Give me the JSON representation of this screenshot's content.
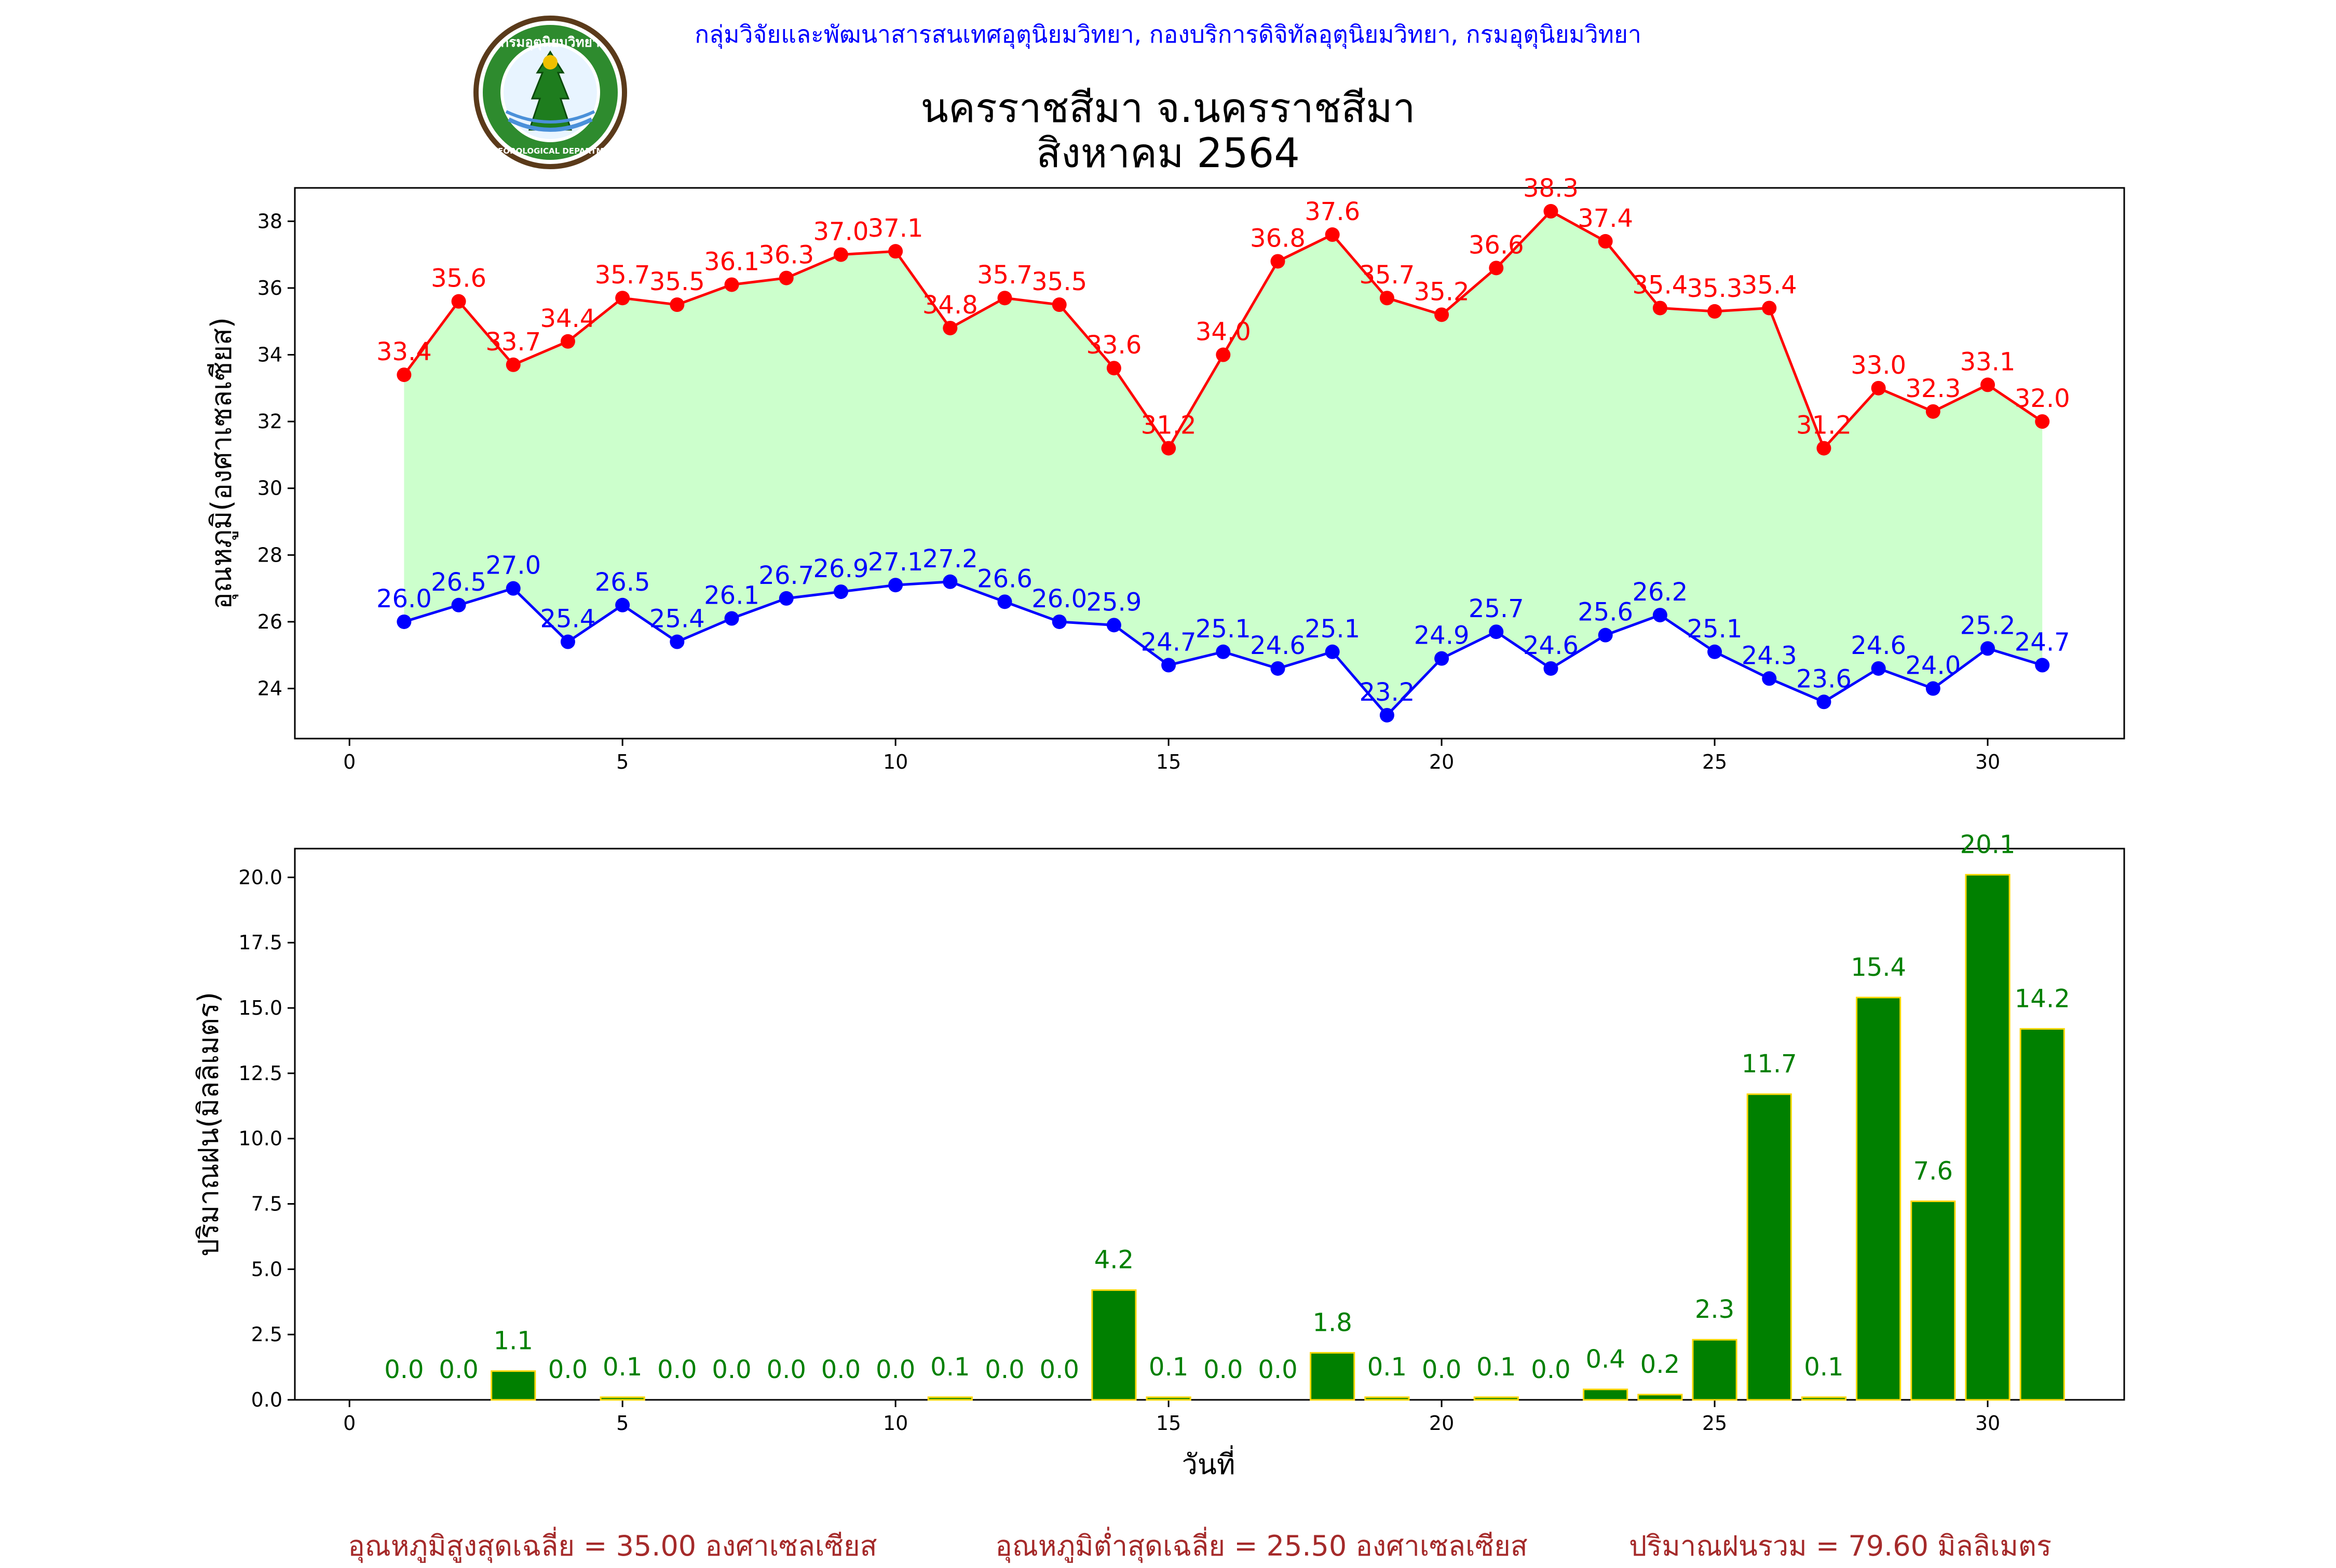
{
  "header": {
    "organization": "กลุ่มวิจัยและพัฒนาสารสนเทศอุตุนิยมวิทยา, กองบริการดิจิทัลอุตุนิยมวิทยา, กรมอุตุนิยมวิทยา",
    "logo_text": "กรมอุตุนิยมวิทยา",
    "logo_text_bottom": "METEOROLOGICAL DEPARTMENT",
    "title_line1": "นครราชสีมา จ.นครราชสีมา",
    "title_line2": "สิงหาคม 2564"
  },
  "colors": {
    "max_temp": "#ff0000",
    "min_temp": "#0000ff",
    "fill": "#ccffcc",
    "rain_bar": "#008000",
    "rain_edge": "#ffd700",
    "rain_label": "#008000",
    "footer_text": "#a52a2a",
    "header_text": "#0000ff"
  },
  "chart_data": [
    {
      "type": "line",
      "ylabel": "อุณหภูมิ(องศาเซลเซียส)",
      "xlim": [
        -1,
        32.5
      ],
      "ylim": [
        22.5,
        39
      ],
      "xticks": [
        0,
        5,
        10,
        15,
        20,
        25,
        30
      ],
      "yticks": [
        24,
        26,
        28,
        30,
        32,
        34,
        36,
        38
      ],
      "x": [
        1,
        2,
        3,
        4,
        5,
        6,
        7,
        8,
        9,
        10,
        11,
        12,
        13,
        14,
        15,
        16,
        17,
        18,
        19,
        20,
        21,
        22,
        23,
        24,
        25,
        26,
        27,
        28,
        29,
        30,
        31
      ],
      "series": [
        {
          "values": [
            33.4,
            35.6,
            33.7,
            34.4,
            35.7,
            35.5,
            36.1,
            36.3,
            37.0,
            37.1,
            34.8,
            35.7,
            35.5,
            33.6,
            31.2,
            34.0,
            36.8,
            37.6,
            35.7,
            35.2,
            36.6,
            38.3,
            37.4,
            35.4,
            35.3,
            35.4,
            31.2,
            33.0,
            32.3,
            33.1,
            32.0
          ]
        },
        {
          "values": [
            26.0,
            26.5,
            27.0,
            25.4,
            26.5,
            25.4,
            26.1,
            26.7,
            26.9,
            27.1,
            27.2,
            26.6,
            26.0,
            25.9,
            24.7,
            25.1,
            24.6,
            25.1,
            23.2,
            24.9,
            25.7,
            24.6,
            25.6,
            26.2,
            25.1,
            24.3,
            23.6,
            24.6,
            24.0,
            25.2,
            24.7
          ]
        }
      ],
      "grid": false
    },
    {
      "type": "bar",
      "xlabel": "วันที่",
      "ylabel": "ปริมาณฝน(มิลลิเมตร)",
      "xlim": [
        -1,
        32.5
      ],
      "ylim": [
        0,
        21.1
      ],
      "xticks": [
        0,
        5,
        10,
        15,
        20,
        25,
        30
      ],
      "yticks": [
        0.0,
        2.5,
        5.0,
        7.5,
        10.0,
        12.5,
        15.0,
        17.5,
        20.0
      ],
      "x": [
        1,
        2,
        3,
        4,
        5,
        6,
        7,
        8,
        9,
        10,
        11,
        12,
        13,
        14,
        15,
        16,
        17,
        18,
        19,
        20,
        21,
        22,
        23,
        24,
        25,
        26,
        27,
        28,
        29,
        30,
        31
      ],
      "values": [
        0.0,
        0.0,
        1.1,
        0.0,
        0.1,
        0.0,
        0.0,
        0.0,
        0.0,
        0.0,
        0.1,
        0.0,
        0.0,
        4.2,
        0.1,
        0.0,
        0.0,
        1.8,
        0.1,
        0.0,
        0.1,
        0.0,
        0.4,
        0.2,
        2.3,
        11.7,
        0.1,
        15.4,
        7.6,
        20.1,
        14.2
      ],
      "grid": false
    }
  ],
  "footer": {
    "avg_max": "อุณหภูมิสูงสุดเฉลี่ย = 35.00 องศาเซลเซียส",
    "avg_min": "อุณหภูมิต่ำสุดเฉลี่ย = 25.50 องศาเซลเซียส",
    "total_rain": "ปริมาณฝนรวม = 79.60 มิลลิเมตร"
  }
}
